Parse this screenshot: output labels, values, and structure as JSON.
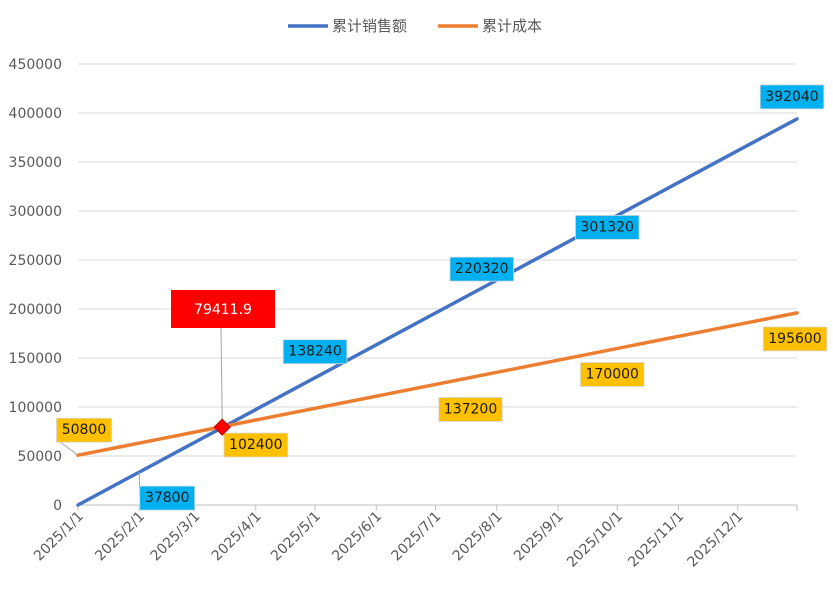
{
  "chart_data": {
    "type": "line",
    "title": "",
    "xlabel": "",
    "ylabel": "",
    "ylim": [
      0,
      450000
    ],
    "y_ticks": [
      "0",
      "50000",
      "100000",
      "150000",
      "200000",
      "250000",
      "300000",
      "350000",
      "400000",
      "450000"
    ],
    "x_ticks": [
      "2025/1/1",
      "2025/2/1",
      "2025/3/1",
      "2025/4/1",
      "2025/5/1",
      "2025/6/1",
      "2025/7/1",
      "2025/8/1",
      "2025/9/1",
      "2025/10/1",
      "2025/11/1",
      "2025/12/1"
    ],
    "x_range": [
      "2025/1/1",
      "2025/12/31"
    ],
    "grid": "horizontal",
    "legend_position": "top",
    "series": [
      {
        "name": "累计销售额",
        "color": "#4472C4",
        "points": [
          [
            "2025/1/1",
            0
          ],
          [
            "2025/12/31",
            394000
          ]
        ],
        "data_labels": [
          {
            "x": "2025/2/1",
            "value": "37800"
          },
          {
            "x": "2025/5/1",
            "value": "138240"
          },
          {
            "x": "2025/8/1",
            "value": "220320"
          },
          {
            "x": "2025/10/1",
            "value": "301320"
          },
          {
            "x": "2025/12/31",
            "value": "392040"
          }
        ]
      },
      {
        "name": "累计成本",
        "color": "#ED7D31",
        "points": [
          [
            "2025/1/1",
            50800
          ],
          [
            "2025/12/31",
            196000
          ]
        ],
        "data_labels": [
          {
            "x": "2025/1/1",
            "value": "50800"
          },
          {
            "x": "2025/4/1",
            "value": "102400"
          },
          {
            "x": "2025/7/1",
            "value": "137200"
          },
          {
            "x": "2025/10/1",
            "value": "170000"
          },
          {
            "x": "2025/12/31",
            "value": "195600"
          }
        ]
      }
    ],
    "intersection": {
      "x": "2025/3/15",
      "y": 79411.9,
      "label": "79411.9",
      "color": "#FF0000"
    }
  }
}
